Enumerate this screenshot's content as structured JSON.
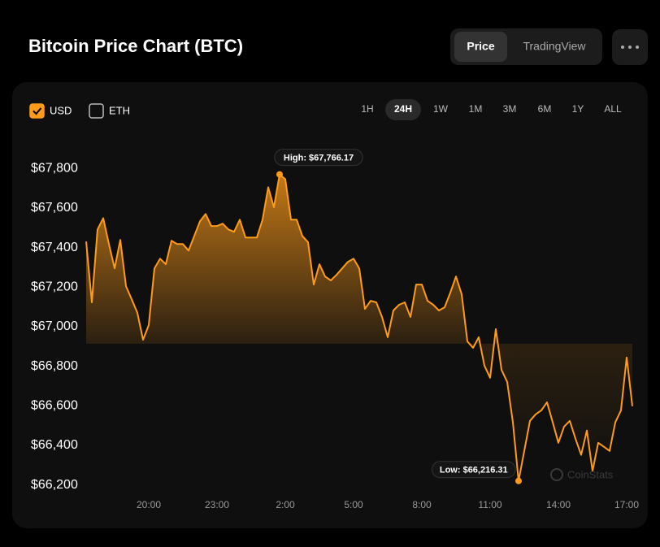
{
  "header": {
    "title": "Bitcoin Price Chart (BTC)",
    "tabs": [
      "Price",
      "TradingView"
    ],
    "selected_tab": 0
  },
  "currencies": [
    {
      "label": "USD",
      "checked": true
    },
    {
      "label": "ETH",
      "checked": false
    }
  ],
  "ranges": [
    "1H",
    "24H",
    "1W",
    "1M",
    "3M",
    "6M",
    "1Y",
    "ALL"
  ],
  "selected_range": 1,
  "watermark": "CoinStats",
  "chart_data": {
    "type": "line",
    "color": "#ff9b1a",
    "area": true,
    "grid": false,
    "xlim": [
      17.25,
      41.25
    ],
    "ylim": [
      66100,
      67900
    ],
    "xticks": [
      {
        "value": 20,
        "label": "20:00"
      },
      {
        "value": 23,
        "label": "23:00"
      },
      {
        "value": 26,
        "label": "2:00"
      },
      {
        "value": 29,
        "label": "5:00"
      },
      {
        "value": 32,
        "label": "8:00"
      },
      {
        "value": 35,
        "label": "11:00"
      },
      {
        "value": 38,
        "label": "14:00"
      },
      {
        "value": 41,
        "label": "17:00"
      }
    ],
    "yticks": [
      {
        "value": 66200,
        "label": "$66,200"
      },
      {
        "value": 66400,
        "label": "$66,400"
      },
      {
        "value": 66600,
        "label": "$66,600"
      },
      {
        "value": 66800,
        "label": "$66,800"
      },
      {
        "value": 67000,
        "label": "$67,000"
      },
      {
        "value": 67200,
        "label": "$67,200"
      },
      {
        "value": 67400,
        "label": "$67,400"
      },
      {
        "value": 67600,
        "label": "$67,600"
      },
      {
        "value": 67800,
        "label": "$67,800"
      }
    ],
    "x": [
      17.25,
      17.5,
      17.75,
      18,
      18.25,
      18.5,
      18.75,
      19,
      19.25,
      19.5,
      19.75,
      20,
      20.25,
      20.5,
      20.75,
      21,
      21.25,
      21.5,
      21.75,
      22,
      22.25,
      22.5,
      22.75,
      23,
      23.25,
      23.5,
      23.75,
      24,
      24.25,
      24.5,
      24.75,
      25,
      25.25,
      25.5,
      25.75,
      26,
      26.25,
      26.5,
      26.75,
      27,
      27.25,
      27.5,
      27.75,
      28,
      28.25,
      28.5,
      28.75,
      29,
      29.25,
      29.5,
      29.75,
      30,
      30.25,
      30.5,
      30.75,
      31,
      31.25,
      31.5,
      31.75,
      32,
      32.25,
      32.5,
      32.75,
      33,
      33.25,
      33.5,
      33.75,
      34,
      34.25,
      34.5,
      34.75,
      35,
      35.25,
      35.5,
      35.75,
      36,
      36.25,
      36.5,
      36.75,
      37,
      37.25,
      37.5,
      37.75,
      38,
      38.25,
      38.5,
      38.75,
      39,
      39.25,
      39.5,
      39.75,
      40,
      40.25,
      40.5,
      40.75,
      41,
      41.25
    ],
    "values": [
      67427,
      67119,
      67488,
      67545,
      67414,
      67291,
      67435,
      67201,
      67135,
      67066,
      66930,
      67004,
      67291,
      67340,
      67312,
      67431,
      67414,
      67414,
      67381,
      67455,
      67529,
      67566,
      67505,
      67505,
      67517,
      67488,
      67476,
      67537,
      67447,
      67447,
      67447,
      67537,
      67701,
      67600,
      67766.17,
      67742,
      67537,
      67537,
      67455,
      67423,
      67209,
      67312,
      67250,
      67230,
      67258,
      67291,
      67324,
      67340,
      67291,
      67086,
      67127,
      67119,
      67045,
      66943,
      67078,
      67107,
      67119,
      67045,
      67209,
      67209,
      67127,
      67107,
      67078,
      67094,
      67168,
      67250,
      67160,
      66922,
      66889,
      66943,
      66799,
      66738,
      66984,
      66778,
      66717,
      66512,
      66216.31,
      66368,
      66520,
      66553,
      66573,
      66614,
      66512,
      66409,
      66491,
      66520,
      66430,
      66348,
      66471,
      66266,
      66409,
      66389,
      66368,
      66512,
      66573,
      66840,
      66594
    ],
    "annotations": [
      {
        "text": "High: $67,766.17",
        "x": 25.75,
        "y": 67766.17,
        "side": "top"
      },
      {
        "text": "Low: $66,216.31",
        "x": 36.25,
        "y": 66216.31,
        "side": "left"
      }
    ]
  }
}
